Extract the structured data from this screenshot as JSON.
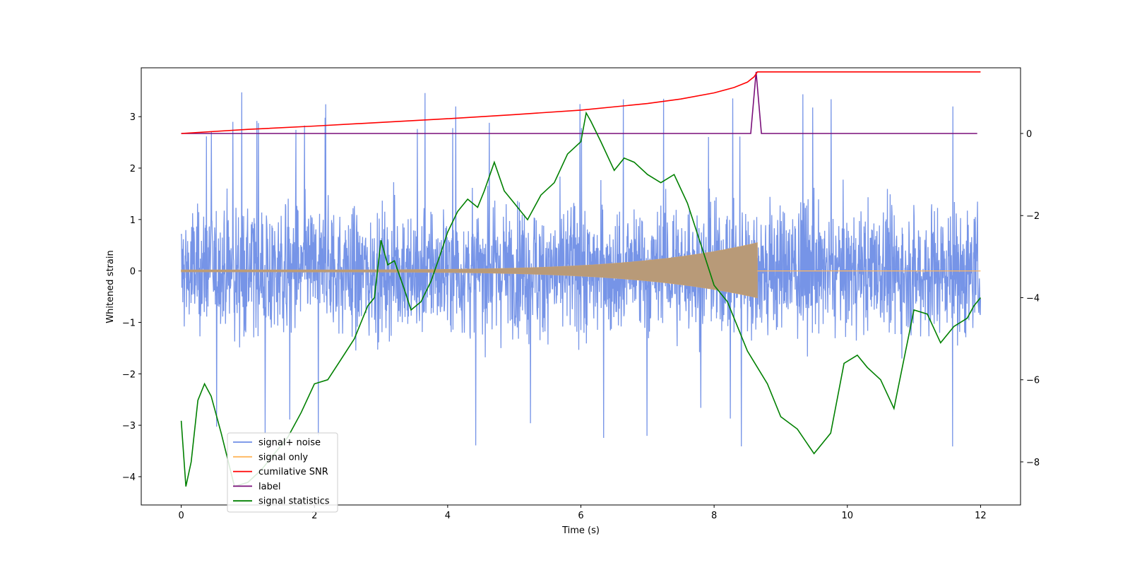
{
  "chart_data": {
    "type": "line",
    "title": "",
    "xlabel": "Time (s)",
    "ylabel": "Whitened strain",
    "xlim": [
      -0.6,
      12.6
    ],
    "ylim": [
      -4.55,
      3.95
    ],
    "y2lim": [
      -9.05,
      1.6
    ],
    "xticks": [
      0,
      2,
      4,
      6,
      8,
      10,
      12
    ],
    "yticks": [
      -4,
      -3,
      -2,
      -1,
      0,
      1,
      2,
      3
    ],
    "y2ticks": [
      -8,
      -6,
      -4,
      -2,
      0
    ],
    "legend_position": "lower-left",
    "series": [
      {
        "name": "signal+ noise",
        "axis": "left",
        "color": "#6f8ee6",
        "description": "noisy whitened strain, roughly -1.7 to 1.7 with spikes to about -4.2 and 3.5",
        "x_range": [
          0,
          12
        ],
        "envelope": [
          -1.7,
          1.7
        ],
        "extremes": [
          -4.2,
          3.55
        ]
      },
      {
        "name": "signal only",
        "axis": "left",
        "color": "#ffb55c",
        "description": "inspiral chirp growing in amplitude until merger near t=8.65 s, then flat",
        "merger_time": 8.65,
        "peak_amplitude": 0.55
      },
      {
        "name": "cumilative SNR",
        "axis": "right",
        "color": "#ff0000",
        "x": [
          0,
          1,
          2,
          3,
          4,
          5,
          6,
          7,
          7.5,
          8,
          8.3,
          8.5,
          8.6,
          8.65,
          12
        ],
        "y": [
          0.0,
          0.1,
          0.18,
          0.27,
          0.36,
          0.46,
          0.57,
          0.73,
          0.84,
          0.99,
          1.12,
          1.25,
          1.38,
          1.5,
          1.5
        ]
      },
      {
        "name": "label",
        "axis": "right",
        "color": "#7a0f7a",
        "x": [
          0,
          8.55,
          8.63,
          8.71,
          11.95
        ],
        "y": [
          0,
          0,
          1.5,
          0,
          0
        ]
      },
      {
        "name": "signal statistics",
        "axis": "right",
        "color": "#008000",
        "x": [
          0,
          0.07,
          0.15,
          0.25,
          0.35,
          0.45,
          0.6,
          0.8,
          1.0,
          1.2,
          1.4,
          1.6,
          1.8,
          2.0,
          2.2,
          2.4,
          2.6,
          2.8,
          2.9,
          3.0,
          3.1,
          3.2,
          3.35,
          3.45,
          3.6,
          3.75,
          3.9,
          4.0,
          4.15,
          4.3,
          4.45,
          4.55,
          4.7,
          4.85,
          5.0,
          5.2,
          5.4,
          5.6,
          5.8,
          6.0,
          6.08,
          6.15,
          6.3,
          6.5,
          6.65,
          6.8,
          7.0,
          7.2,
          7.4,
          7.6,
          7.8,
          8.0,
          8.2,
          8.5,
          8.8,
          9.0,
          9.25,
          9.5,
          9.75,
          9.95,
          10.15,
          10.3,
          10.5,
          10.7,
          10.85,
          11.0,
          11.2,
          11.4,
          11.6,
          11.8,
          11.9,
          12.0
        ],
        "y": [
          -7.0,
          -8.6,
          -8.0,
          -6.5,
          -6.1,
          -6.4,
          -7.3,
          -8.6,
          -8.5,
          -8.2,
          -7.8,
          -7.4,
          -6.8,
          -6.1,
          -6.0,
          -5.5,
          -5.0,
          -4.2,
          -4.0,
          -2.6,
          -3.2,
          -3.1,
          -3.8,
          -4.3,
          -4.1,
          -3.6,
          -2.9,
          -2.4,
          -1.9,
          -1.6,
          -1.8,
          -1.4,
          -0.7,
          -1.4,
          -1.7,
          -2.1,
          -1.5,
          -1.2,
          -0.5,
          -0.2,
          0.5,
          0.3,
          -0.2,
          -0.9,
          -0.6,
          -0.7,
          -1.0,
          -1.2,
          -1.0,
          -1.7,
          -2.7,
          -3.7,
          -4.1,
          -5.3,
          -6.1,
          -6.9,
          -7.2,
          -7.8,
          -7.3,
          -5.6,
          -5.4,
          -5.7,
          -6.0,
          -6.7,
          -5.5,
          -4.3,
          -4.4,
          -5.1,
          -4.7,
          -4.5,
          -4.2,
          -4.0
        ]
      }
    ]
  }
}
